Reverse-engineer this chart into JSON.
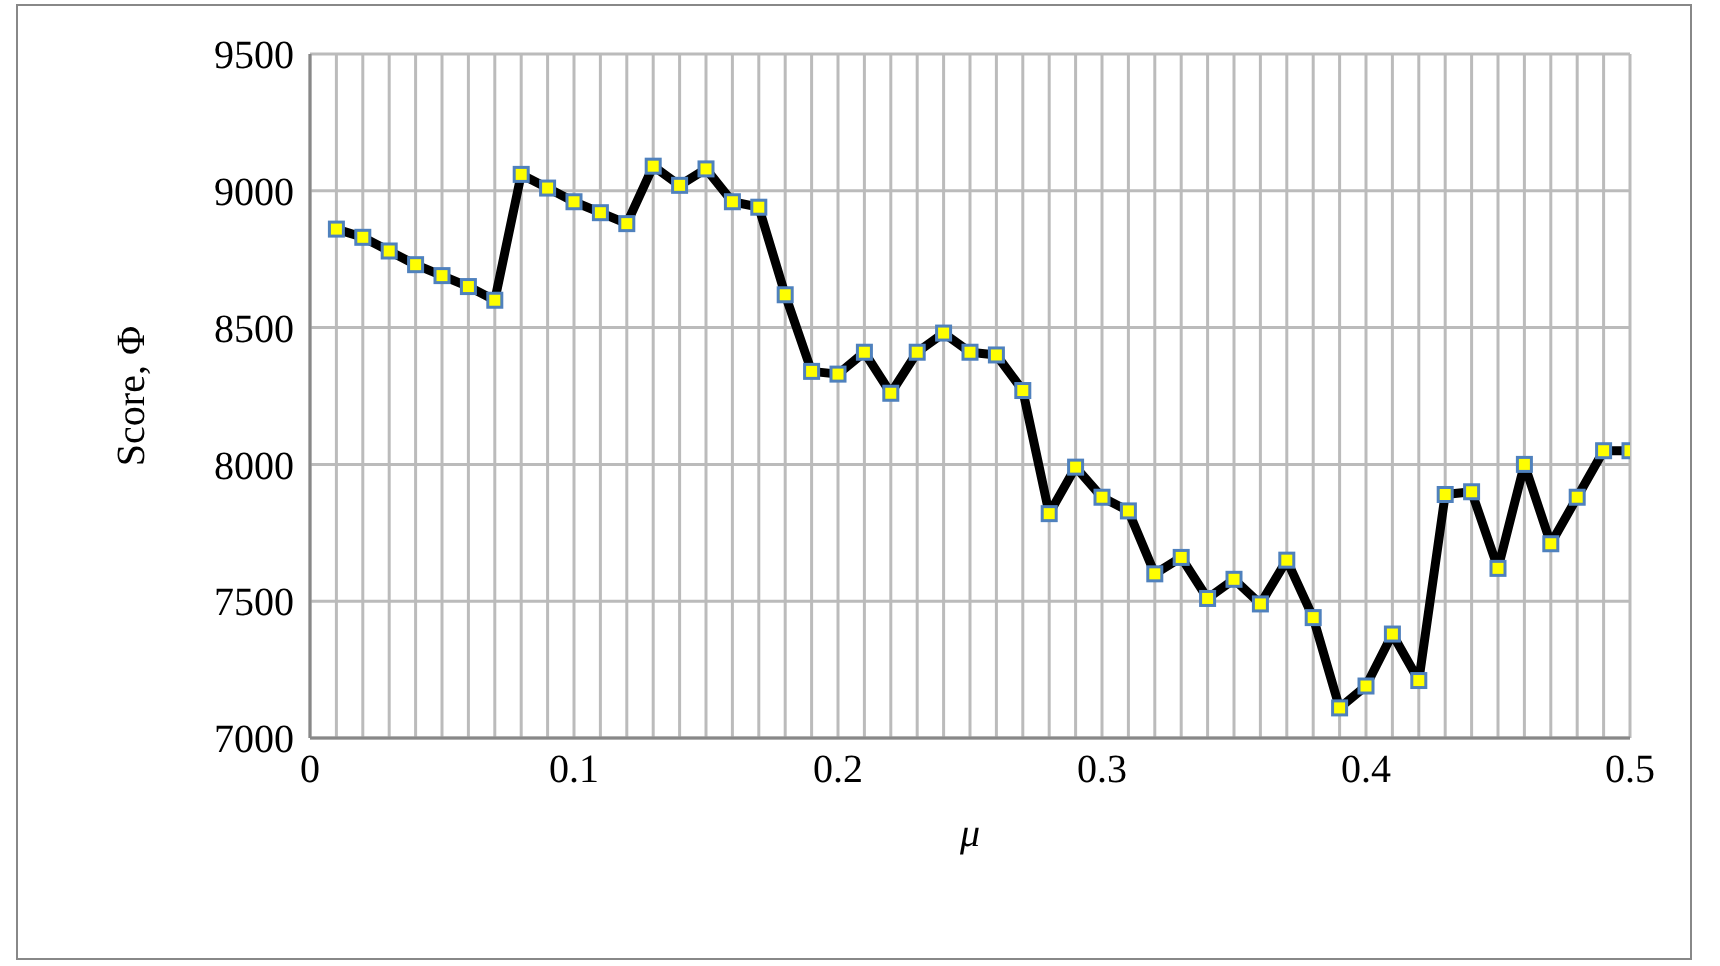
{
  "chart_data": {
    "type": "line",
    "xlabel": "μ",
    "ylabel": "Score, Φ",
    "x": [
      0.01,
      0.02,
      0.03,
      0.04,
      0.05,
      0.06,
      0.07,
      0.08,
      0.09,
      0.1,
      0.11,
      0.12,
      0.13,
      0.14,
      0.15,
      0.16,
      0.17,
      0.18,
      0.19,
      0.2,
      0.21,
      0.22,
      0.23,
      0.24,
      0.25,
      0.26,
      0.27,
      0.28,
      0.29,
      0.3,
      0.31,
      0.32,
      0.33,
      0.34,
      0.35,
      0.36,
      0.37,
      0.38,
      0.39,
      0.4,
      0.41,
      0.42,
      0.43,
      0.44,
      0.45,
      0.46,
      0.47,
      0.48,
      0.49,
      0.5
    ],
    "series": [
      {
        "color": "#000000",
        "values": [
          8860,
          8830,
          8780,
          8730,
          8690,
          8650,
          8600,
          9060,
          9010,
          8960,
          8920,
          8880,
          9090,
          9020,
          9080,
          8960,
          8940,
          8620,
          8340,
          8330,
          8410,
          8260,
          8410,
          8480,
          8410,
          8400,
          8270,
          7820,
          7990,
          7880,
          7830,
          7600,
          7660,
          7510,
          7580,
          7490,
          7650,
          7440,
          7110,
          7190,
          7380,
          7210,
          7890,
          7900,
          7620,
          8000,
          7710,
          7880,
          8050,
          8050
        ]
      }
    ],
    "xlim": [
      0,
      0.5
    ],
    "xticks": [
      0,
      {
        "value": 0.01,
        "label": null
      },
      {
        "value": 0.02,
        "label": null
      },
      {
        "value": 0.03,
        "label": null
      },
      {
        "value": 0.04,
        "label": null
      },
      {
        "value": 0.05,
        "label": null
      },
      {
        "value": 0.06,
        "label": null
      },
      {
        "value": 0.07,
        "label": null
      },
      {
        "value": 0.08,
        "label": null
      },
      {
        "value": 0.09,
        "label": null
      },
      0.1,
      {
        "value": 0.11,
        "label": null
      },
      {
        "value": 0.12,
        "label": null
      },
      {
        "value": 0.13,
        "label": null
      },
      {
        "value": 0.14,
        "label": null
      },
      {
        "value": 0.15,
        "label": null
      },
      {
        "value": 0.16,
        "label": null
      },
      {
        "value": 0.17,
        "label": null
      },
      {
        "value": 0.18,
        "label": null
      },
      {
        "value": 0.19,
        "label": null
      },
      0.2,
      {
        "value": 0.21,
        "label": null
      },
      {
        "value": 0.22,
        "label": null
      },
      {
        "value": 0.23,
        "label": null
      },
      {
        "value": 0.24,
        "label": null
      },
      {
        "value": 0.25,
        "label": null
      },
      {
        "value": 0.26,
        "label": null
      },
      {
        "value": 0.27,
        "label": null
      },
      {
        "value": 0.28,
        "label": null
      },
      {
        "value": 0.29,
        "label": null
      },
      0.3,
      {
        "value": 0.31,
        "label": null
      },
      {
        "value": 0.32,
        "label": null
      },
      {
        "value": 0.33,
        "label": null
      },
      {
        "value": 0.34,
        "label": null
      },
      {
        "value": 0.35,
        "label": null
      },
      {
        "value": 0.36,
        "label": null
      },
      {
        "value": 0.37,
        "label": null
      },
      {
        "value": 0.38,
        "label": null
      },
      {
        "value": 0.39,
        "label": null
      },
      0.4,
      {
        "value": 0.41,
        "label": null
      },
      {
        "value": 0.42,
        "label": null
      },
      {
        "value": 0.43,
        "label": null
      },
      {
        "value": 0.44,
        "label": null
      },
      {
        "value": 0.45,
        "label": null
      },
      {
        "value": 0.46,
        "label": null
      },
      {
        "value": 0.47,
        "label": null
      },
      {
        "value": 0.48,
        "label": null
      },
      {
        "value": 0.49,
        "label": null
      },
      0.5
    ],
    "ylim": [
      7000,
      9500
    ],
    "yticks": [
      7000,
      7500,
      8000,
      8500,
      9000,
      9500
    ],
    "grid": true,
    "marker": "square",
    "line_style": "solid"
  }
}
